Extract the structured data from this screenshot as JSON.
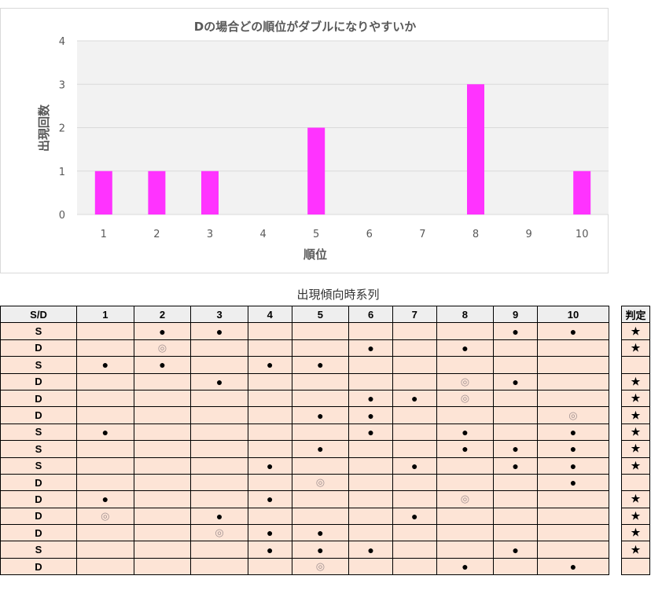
{
  "chart_data": {
    "type": "bar",
    "title": "Dの場合どの順位がダブルになりやすいか",
    "xlabel": "順位",
    "ylabel": "出現回数",
    "categories": [
      "1",
      "2",
      "3",
      "4",
      "5",
      "6",
      "7",
      "8",
      "9",
      "10"
    ],
    "values": [
      1,
      1,
      1,
      0,
      2,
      0,
      0,
      3,
      0,
      1
    ],
    "ylim": [
      0,
      4
    ],
    "yticks": [
      "0",
      "1",
      "2",
      "3",
      "4"
    ],
    "grid": true,
    "bar_color": "#ff33ff",
    "plot_bg": "#f2f2f2"
  },
  "table": {
    "caption": "出現傾向時系列",
    "headers": [
      "S/D",
      "1",
      "2",
      "3",
      "4",
      "5",
      "6",
      "7",
      "8",
      "9",
      "10"
    ],
    "judge_header": "判定",
    "rows": [
      {
        "sd": "S",
        "cells": [
          "",
          "●",
          "●",
          "",
          "",
          "",
          "",
          "",
          "●",
          "●"
        ],
        "judge": "★"
      },
      {
        "sd": "D",
        "cells": [
          "",
          "◎",
          "",
          "",
          "",
          "●",
          "",
          "●",
          "",
          ""
        ],
        "judge": "★"
      },
      {
        "sd": "S",
        "cells": [
          "●",
          "●",
          "",
          "●",
          "●",
          "",
          "",
          "",
          "",
          ""
        ],
        "judge": ""
      },
      {
        "sd": "D",
        "cells": [
          "",
          "",
          "●",
          "",
          "",
          "",
          "",
          "◎",
          "●",
          ""
        ],
        "judge": "★"
      },
      {
        "sd": "D",
        "cells": [
          "",
          "",
          "",
          "",
          "",
          "●",
          "●",
          "◎",
          "",
          ""
        ],
        "judge": "★"
      },
      {
        "sd": "D",
        "cells": [
          "",
          "",
          "",
          "",
          "●",
          "●",
          "",
          "",
          "",
          "◎"
        ],
        "judge": "★"
      },
      {
        "sd": "S",
        "cells": [
          "●",
          "",
          "",
          "",
          "",
          "●",
          "",
          "●",
          "",
          "●"
        ],
        "judge": "★"
      },
      {
        "sd": "S",
        "cells": [
          "",
          "",
          "",
          "",
          "●",
          "",
          "",
          "●",
          "●",
          "●"
        ],
        "judge": "★"
      },
      {
        "sd": "S",
        "cells": [
          "",
          "",
          "",
          "●",
          "",
          "",
          "●",
          "",
          "●",
          "●"
        ],
        "judge": "★"
      },
      {
        "sd": "D",
        "cells": [
          "",
          "",
          "",
          "",
          "◎",
          "",
          "",
          "",
          "",
          "●"
        ],
        "judge": ""
      },
      {
        "sd": "D",
        "cells": [
          "●",
          "",
          "",
          "●",
          "",
          "",
          "",
          "◎",
          "",
          ""
        ],
        "judge": "★"
      },
      {
        "sd": "D",
        "cells": [
          "◎",
          "",
          "●",
          "",
          "",
          "",
          "●",
          "",
          "",
          ""
        ],
        "judge": "★"
      },
      {
        "sd": "D",
        "cells": [
          "",
          "",
          "◎",
          "●",
          "●",
          "",
          "",
          "",
          "",
          ""
        ],
        "judge": "★"
      },
      {
        "sd": "S",
        "cells": [
          "",
          "",
          "",
          "●",
          "●",
          "●",
          "",
          "",
          "●",
          ""
        ],
        "judge": "★"
      },
      {
        "sd": "D",
        "cells": [
          "",
          "",
          "",
          "",
          "◎",
          "",
          "",
          "●",
          "",
          "●"
        ],
        "judge": ""
      }
    ]
  }
}
